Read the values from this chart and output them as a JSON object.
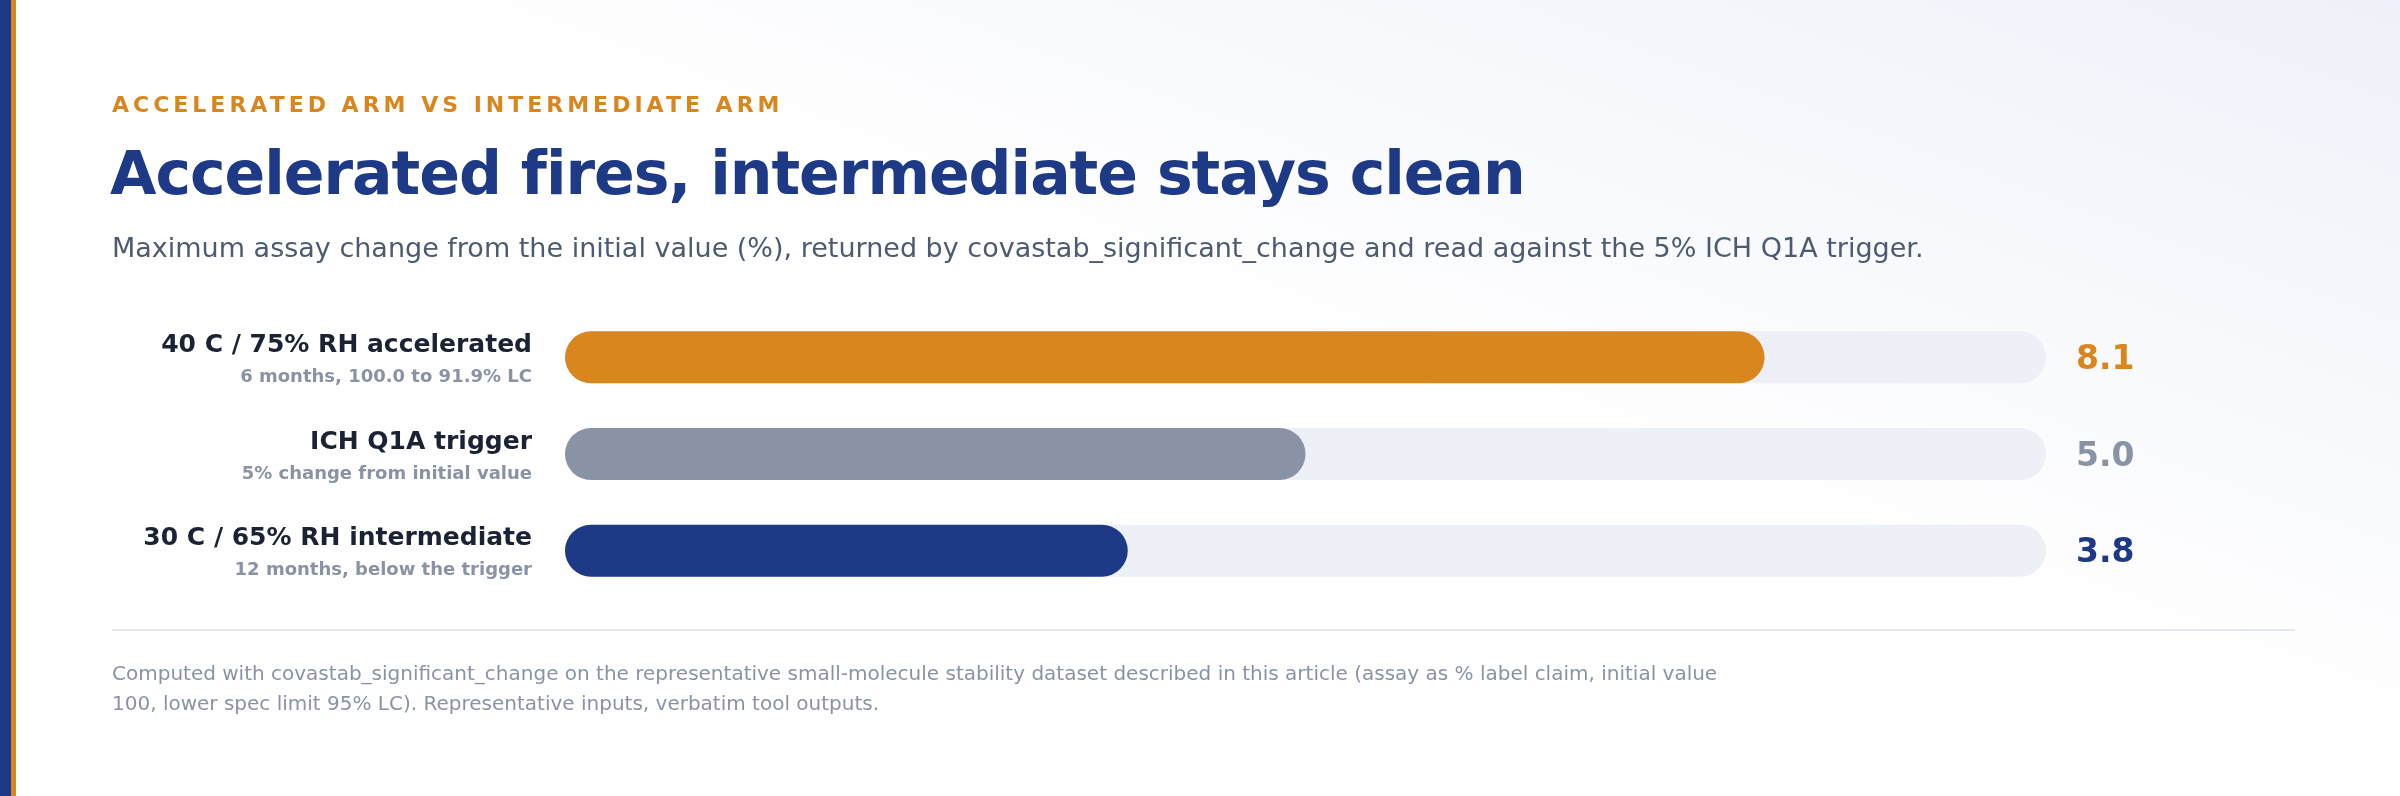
{
  "chart_data": {
    "type": "bar",
    "orientation": "horizontal",
    "title": "Accelerated fires, intermediate stays clean",
    "subtitle": "Maximum assay change from the initial value (%), returned by covastab_significant_change and read against the 5% ICH Q1A trigger.",
    "categories": [
      "40 C / 75% RH accelerated",
      "ICH Q1A trigger",
      "30 C / 65% RH intermediate"
    ],
    "values": [
      8.1,
      5.0,
      3.8
    ],
    "value_labels": [
      "8.1",
      "5.0",
      "3.8"
    ],
    "colors": [
      "#d9861f",
      "#8a93a6",
      "#1e3a86"
    ],
    "xlim": [
      0,
      10
    ],
    "annotations": [
      "ACCELERATED ARM VS INTERMEDIATE ARM",
      "6 months, 100.0 to 91.9% LC",
      "5% change from initial value",
      "12 months, below the trigger",
      "Computed with covastab_significant_change on the representative small-molecule stability dataset described in this article (assay as % label claim, initial value 100, lower spec limit 95% LC). Representative inputs, verbatim tool outputs."
    ]
  }
}
